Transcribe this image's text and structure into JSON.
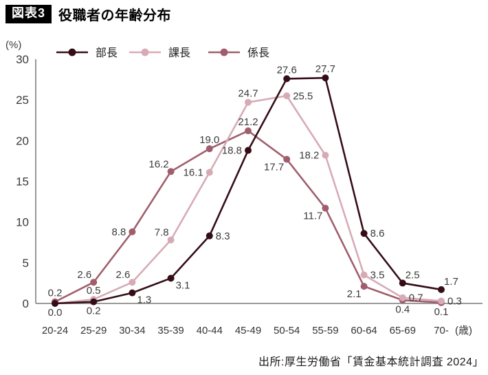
{
  "header": {
    "badge": "図表3",
    "title": "役職者の年齢分布"
  },
  "source": "出所:厚生労働省「賃金基本統計調査 2024」",
  "chart_data": {
    "type": "line",
    "title": "役職者の年齢分布",
    "unit_label": "(%)",
    "axis_unit": "(歳)",
    "categories": [
      "20-24",
      "25-29",
      "30-34",
      "35-39",
      "40-44",
      "45-49",
      "50-54",
      "55-59",
      "60-64",
      "65-69",
      "70-"
    ],
    "ylim": [
      0,
      30
    ],
    "yticks": [
      0,
      5,
      10,
      15,
      20,
      25,
      30
    ],
    "grid": false,
    "legend_position": "top",
    "colors": {
      "axis": "#8c8c8c",
      "label_text": "#3a3a3a"
    },
    "series": [
      {
        "key": "bucho",
        "name": "部長",
        "color": "#350d17",
        "values": [
          0.0,
          0.2,
          1.3,
          3.1,
          8.3,
          18.8,
          27.6,
          27.7,
          8.6,
          2.5,
          1.7
        ],
        "label_positions": [
          "below",
          "below",
          "below-right",
          "below-right",
          "right",
          "left",
          "above",
          "above",
          "right",
          "above-right",
          "above-right"
        ]
      },
      {
        "key": "kacho",
        "name": "課長",
        "color": "#d7abb6",
        "values": [
          0.0,
          0.5,
          2.6,
          7.8,
          16.1,
          24.7,
          25.5,
          18.2,
          3.5,
          0.7,
          0.3
        ],
        "label_positions": [
          null,
          "above",
          "above-left",
          "above-left",
          "left",
          "above",
          "right",
          "left",
          "right",
          "right",
          "right"
        ]
      },
      {
        "key": "kakaricho",
        "name": "係長",
        "color": "#a05e6c",
        "values": [
          0.2,
          2.6,
          8.8,
          16.2,
          19.0,
          21.2,
          17.7,
          11.7,
          2.1,
          0.4,
          0.1
        ],
        "label_positions": [
          "above",
          "above-left",
          "left",
          "above-left",
          "above",
          "above",
          "below-left",
          "below-left",
          "below-left",
          "below",
          "below"
        ]
      }
    ]
  }
}
